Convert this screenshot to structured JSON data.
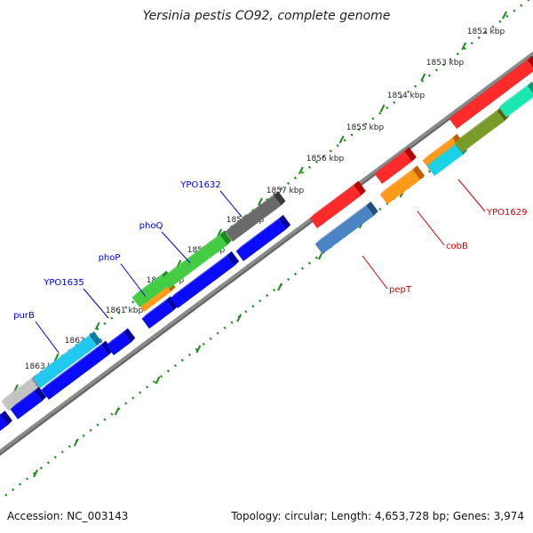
{
  "title": "Yersinia pestis CO92, complete genome",
  "footer": {
    "accession": "Accession: NC_003143",
    "summary": "Topology: circular; Length: 4,653,728 bp; Genes: 3,974"
  },
  "colors": {
    "background": "#ffffff",
    "backbone": "#808080",
    "tick": "#1f8a1f",
    "forward_label": "#0000cc",
    "reverse_label": "#cc0000"
  },
  "ticks": [
    "1852 kbp",
    "1853 kbp",
    "1854 kbp",
    "1855 kbp",
    "1856 kbp",
    "1857 kbp",
    "1858 kbp",
    "1859 kbp",
    "1860 kbp",
    "1861 kbp",
    "1862 kbp",
    "1863 kbp"
  ],
  "gene_labels": {
    "forward": [
      "YPO1632",
      "phoQ",
      "phoP",
      "YPO1635",
      "purB"
    ],
    "reverse": [
      "YPO1629",
      "cobB",
      "pepT"
    ]
  },
  "gene_colors": [
    "red",
    "orange",
    "olive",
    "cyan",
    "teal",
    "steelblue",
    "dark-gray",
    "green",
    "blue",
    "light-blue",
    "light-gray",
    "pink"
  ]
}
